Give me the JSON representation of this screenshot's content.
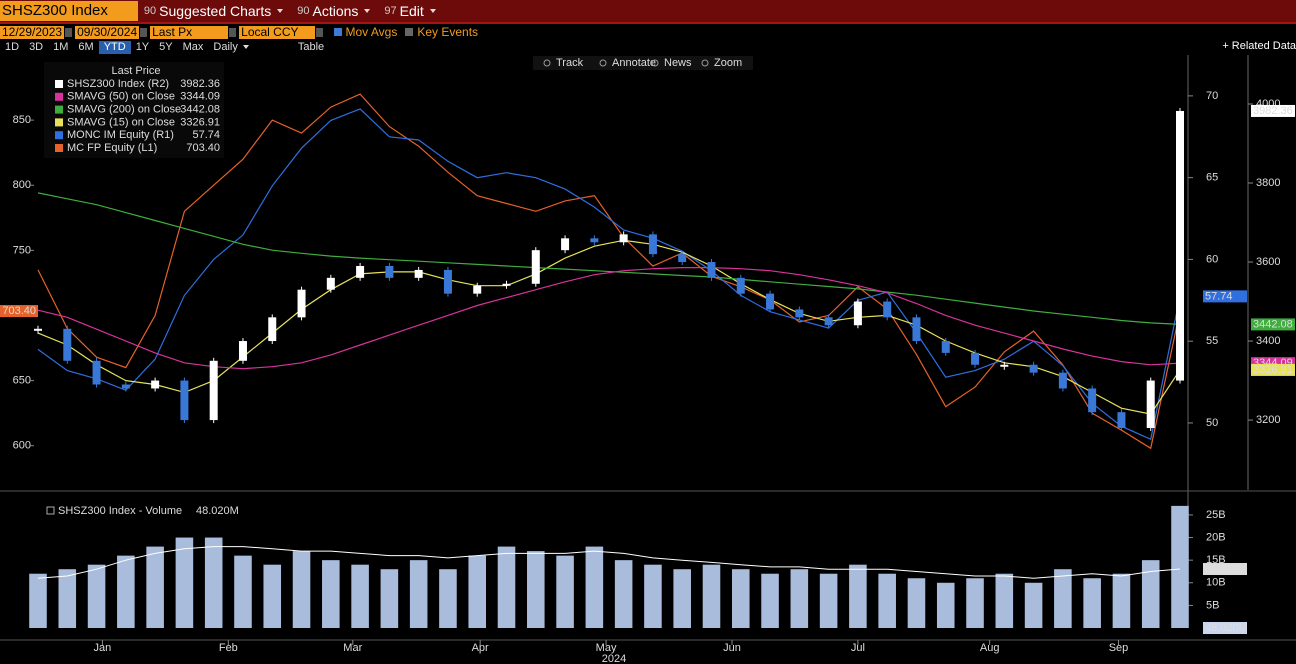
{
  "toolbar": {
    "ticker": "SHSZ300 Index",
    "menus": [
      {
        "code": "90",
        "label": "Suggested Charts"
      },
      {
        "code": "90",
        "label": "Actions"
      },
      {
        "code": "97",
        "label": "Edit"
      }
    ]
  },
  "controls": {
    "start_date": "12/29/2023",
    "end_date": "09/30/2024",
    "field": "Last Px",
    "currency": "Local CCY",
    "mov_avgs": "Mov Avgs",
    "key_events": "Key Events",
    "periods": [
      "1D",
      "3D",
      "1M",
      "6M",
      "YTD",
      "1Y",
      "5Y",
      "Max"
    ],
    "frequency": "Daily",
    "table": "Table",
    "related": "+ Related Data"
  },
  "chart_tools": [
    "Track",
    "Annotate",
    "News",
    "Zoom"
  ],
  "chart_data": [
    {
      "type": "line",
      "legend_title": "Last Price",
      "x_caption": "2024",
      "xlim": [
        0,
        39
      ],
      "xticks": [
        {
          "value": 2.2,
          "label": "Jan"
        },
        {
          "value": 6.5,
          "label": "Feb"
        },
        {
          "value": 10.75,
          "label": "Mar"
        },
        {
          "value": 15.1,
          "label": "Apr"
        },
        {
          "value": 19.4,
          "label": "May"
        },
        {
          "value": 23.7,
          "label": "Jun"
        },
        {
          "value": 28,
          "label": "Jul"
        },
        {
          "value": 32.5,
          "label": "Aug"
        },
        {
          "value": 36.9,
          "label": "Sep"
        }
      ],
      "ylim": [
        566,
        900
      ],
      "yticks": [
        600,
        650,
        750,
        800,
        850
      ],
      "y2lim": [
        45.9,
        72.5
      ],
      "y2ticks": [
        50,
        55,
        60,
        65,
        70
      ],
      "y3lim": [
        3023,
        4124
      ],
      "y3ticks": [
        3200,
        3400,
        3600,
        3800,
        4000
      ],
      "series": [
        {
          "name": "SHSZ300 Index  (R2)",
          "last_label": "3982.36",
          "axis": "y3",
          "style": "candle",
          "color": "#ffffff",
          "down_color": "#3a78d8",
          "values": [
            3431,
            3350,
            3290,
            3280,
            3300,
            3200,
            3350,
            3400,
            3460,
            3530,
            3560,
            3590,
            3560,
            3580,
            3520,
            3540,
            3545,
            3630,
            3660,
            3650,
            3670,
            3620,
            3600,
            3560,
            3520,
            3480,
            3460,
            3440,
            3500,
            3460,
            3400,
            3370,
            3340,
            3340,
            3320,
            3280,
            3220,
            3180,
            3300,
            3982.36
          ]
        },
        {
          "name": "SMAVG (50)  on Close",
          "last_label": "3344.09",
          "axis": "y3",
          "color": "#d6339c",
          "values": [
            3478,
            3460,
            3430,
            3400,
            3370,
            3345,
            3335,
            3330,
            3335,
            3345,
            3365,
            3390,
            3415,
            3440,
            3465,
            3490,
            3510,
            3530,
            3550,
            3568,
            3578,
            3583,
            3586,
            3586,
            3583,
            3578,
            3568,
            3555,
            3540,
            3522,
            3495,
            3465,
            3440,
            3420,
            3400,
            3380,
            3362,
            3348,
            3340,
            3344.09
          ]
        },
        {
          "name": "SMAVG (200)  on Close",
          "last_label": "3442.08",
          "axis": "y3",
          "color": "#3fae3f",
          "values": [
            3775,
            3760,
            3745,
            3725,
            3705,
            3685,
            3665,
            3645,
            3630,
            3622,
            3615,
            3610,
            3606,
            3602,
            3598,
            3594,
            3590,
            3586,
            3582,
            3578,
            3574,
            3570,
            3566,
            3562,
            3556,
            3550,
            3544,
            3538,
            3532,
            3524,
            3516,
            3506,
            3496,
            3486,
            3476,
            3468,
            3460,
            3452,
            3446,
            3442.08
          ]
        },
        {
          "name": "SMAVG (15)  on Close",
          "last_label": "3326.91",
          "axis": "y3",
          "color": "#e8e25a",
          "values": [
            3420,
            3390,
            3340,
            3300,
            3290,
            3270,
            3300,
            3360,
            3420,
            3480,
            3530,
            3570,
            3575,
            3575,
            3555,
            3540,
            3540,
            3570,
            3610,
            3640,
            3655,
            3645,
            3625,
            3590,
            3545,
            3505,
            3470,
            3450,
            3460,
            3465,
            3440,
            3400,
            3370,
            3345,
            3335,
            3310,
            3270,
            3230,
            3215,
            3326.91
          ]
        },
        {
          "name": "MONC IM Equity  (R1)",
          "last_label": "57.74",
          "axis": "y2",
          "color": "#2f6fe0",
          "values": [
            54.5,
            53.2,
            52.7,
            52.0,
            53.9,
            57.8,
            60.0,
            61.5,
            64.5,
            66.8,
            68.5,
            69.2,
            67.5,
            67.3,
            66.0,
            65.0,
            65.3,
            65.0,
            64.3,
            63.2,
            61.8,
            61.3,
            60.5,
            59.3,
            57.8,
            56.8,
            56.3,
            55.8,
            57.5,
            58.0,
            55.5,
            52.8,
            53.2,
            53.9,
            55.0,
            53.5,
            51.2,
            49.8,
            49.0,
            57.74
          ]
        },
        {
          "name": "MC FP Equity  (L1)",
          "last_label": "703.40",
          "axis": "y",
          "color": "#e5622a",
          "values": [
            735,
            690,
            668,
            660,
            700,
            780,
            800,
            820,
            850,
            840,
            860,
            870,
            845,
            830,
            810,
            792,
            786,
            780,
            788,
            792,
            760,
            738,
            748,
            730,
            722,
            712,
            695,
            700,
            722,
            705,
            670,
            630,
            645,
            672,
            688,
            662,
            625,
            612,
            598,
            703.4
          ]
        }
      ]
    },
    {
      "type": "bar",
      "xlim": [
        0,
        39
      ],
      "ylim": [
        0,
        28.3
      ],
      "yticks": [
        {
          "value": 5,
          "label": "5B"
        },
        {
          "value": 10,
          "label": "10B"
        },
        {
          "value": 15,
          "label": "15B"
        },
        {
          "value": 20,
          "label": "20B"
        },
        {
          "value": 25,
          "label": "25B"
        }
      ],
      "series": [
        {
          "name": "SHSZ300 Index - Volume",
          "last_label": "48.020M",
          "color": "#a9bcdc",
          "values": [
            12,
            13,
            14,
            16,
            18,
            20,
            20,
            16,
            14,
            17,
            15,
            14,
            13,
            15,
            13,
            16,
            18,
            17,
            16,
            18,
            15,
            14,
            13,
            14,
            13,
            12,
            13,
            12,
            14,
            12,
            11,
            10,
            11,
            12,
            10,
            13,
            11,
            12,
            15,
            27
          ]
        },
        {
          "style": "line",
          "last_label": "13.042B",
          "color": "#ffffff",
          "values": [
            11,
            11.5,
            13,
            15,
            16.5,
            17.5,
            18,
            18,
            17.5,
            17,
            17,
            16.5,
            16,
            16,
            15.5,
            16,
            16.5,
            16.5,
            16.5,
            17,
            16.5,
            15.5,
            15,
            14.5,
            14,
            13.5,
            13.5,
            13,
            13,
            13,
            12.5,
            12,
            11.5,
            11.5,
            11,
            11.5,
            12,
            11.5,
            12.5,
            13.042
          ]
        }
      ]
    }
  ]
}
